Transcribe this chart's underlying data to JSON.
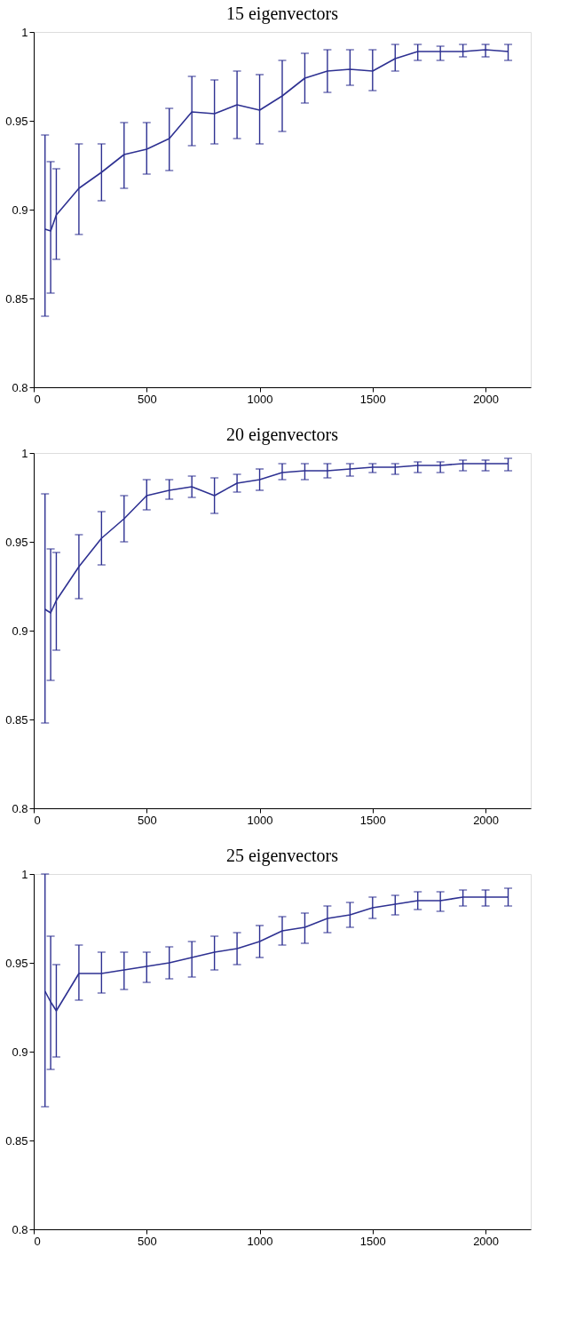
{
  "chart_data": [
    {
      "type": "line",
      "title": "15 eigenvectors",
      "color": "#2e3192",
      "xlim": [
        0,
        2200
      ],
      "xticks": [
        0,
        500,
        1000,
        1500,
        2000
      ],
      "ylim": [
        0.8,
        1
      ],
      "yticks": [
        0.8,
        0.85,
        0.9,
        0.95,
        1
      ],
      "grid": false,
      "marker": "none",
      "line_style": "solid",
      "x": [
        50,
        75,
        100,
        200,
        300,
        400,
        500,
        600,
        700,
        800,
        900,
        1000,
        1100,
        1200,
        1300,
        1400,
        1500,
        1600,
        1700,
        1800,
        1900,
        2000,
        2100
      ],
      "values": [
        0.889,
        0.888,
        0.897,
        0.912,
        0.921,
        0.931,
        0.934,
        0.94,
        0.955,
        0.954,
        0.959,
        0.956,
        0.964,
        0.974,
        0.978,
        0.979,
        0.978,
        0.985,
        0.989,
        0.989,
        0.989,
        0.99,
        0.989
      ],
      "errors": [
        [
          0.84,
          0.942
        ],
        [
          0.853,
          0.927
        ],
        [
          0.872,
          0.923
        ],
        [
          0.886,
          0.937
        ],
        [
          0.905,
          0.937
        ],
        [
          0.912,
          0.949
        ],
        [
          0.92,
          0.949
        ],
        [
          0.922,
          0.957
        ],
        [
          0.936,
          0.975
        ],
        [
          0.937,
          0.973
        ],
        [
          0.94,
          0.978
        ],
        [
          0.937,
          0.976
        ],
        [
          0.944,
          0.984
        ],
        [
          0.96,
          0.988
        ],
        [
          0.966,
          0.99
        ],
        [
          0.97,
          0.99
        ],
        [
          0.967,
          0.99
        ],
        [
          0.978,
          0.993
        ],
        [
          0.984,
          0.993
        ],
        [
          0.984,
          0.992
        ],
        [
          0.986,
          0.993
        ],
        [
          0.986,
          0.993
        ],
        [
          0.984,
          0.993
        ]
      ]
    },
    {
      "type": "line",
      "title": "20 eigenvectors",
      "color": "#2e3192",
      "xlim": [
        0,
        2200
      ],
      "xticks": [
        0,
        500,
        1000,
        1500,
        2000
      ],
      "ylim": [
        0.8,
        1
      ],
      "yticks": [
        0.8,
        0.85,
        0.9,
        0.95,
        1
      ],
      "grid": false,
      "marker": "none",
      "line_style": "solid",
      "x": [
        50,
        75,
        100,
        200,
        300,
        400,
        500,
        600,
        700,
        800,
        900,
        1000,
        1100,
        1200,
        1300,
        1400,
        1500,
        1600,
        1700,
        1800,
        1900,
        2000,
        2100
      ],
      "values": [
        0.912,
        0.91,
        0.917,
        0.936,
        0.952,
        0.963,
        0.976,
        0.979,
        0.981,
        0.976,
        0.983,
        0.985,
        0.989,
        0.99,
        0.99,
        0.991,
        0.992,
        0.992,
        0.993,
        0.993,
        0.994,
        0.994,
        0.994
      ],
      "errors": [
        [
          0.848,
          0.977
        ],
        [
          0.872,
          0.946
        ],
        [
          0.889,
          0.944
        ],
        [
          0.918,
          0.954
        ],
        [
          0.937,
          0.967
        ],
        [
          0.95,
          0.976
        ],
        [
          0.968,
          0.985
        ],
        [
          0.974,
          0.985
        ],
        [
          0.975,
          0.987
        ],
        [
          0.966,
          0.986
        ],
        [
          0.978,
          0.988
        ],
        [
          0.979,
          0.991
        ],
        [
          0.985,
          0.994
        ],
        [
          0.985,
          0.994
        ],
        [
          0.986,
          0.994
        ],
        [
          0.987,
          0.994
        ],
        [
          0.989,
          0.994
        ],
        [
          0.988,
          0.994
        ],
        [
          0.989,
          0.995
        ],
        [
          0.989,
          0.995
        ],
        [
          0.99,
          0.996
        ],
        [
          0.99,
          0.996
        ],
        [
          0.99,
          0.997
        ]
      ]
    },
    {
      "type": "line",
      "title": "25 eigenvectors",
      "color": "#2e3192",
      "xlim": [
        0,
        2200
      ],
      "xticks": [
        0,
        500,
        1000,
        1500,
        2000
      ],
      "ylim": [
        0.8,
        1
      ],
      "yticks": [
        0.8,
        0.85,
        0.9,
        0.95,
        1
      ],
      "grid": false,
      "marker": "none",
      "line_style": "solid",
      "x": [
        50,
        75,
        100,
        200,
        300,
        400,
        500,
        600,
        700,
        800,
        900,
        1000,
        1100,
        1200,
        1300,
        1400,
        1500,
        1600,
        1700,
        1800,
        1900,
        2000,
        2100
      ],
      "values": [
        0.934,
        0.928,
        0.923,
        0.944,
        0.944,
        0.946,
        0.948,
        0.95,
        0.953,
        0.956,
        0.958,
        0.962,
        0.968,
        0.97,
        0.975,
        0.977,
        0.981,
        0.983,
        0.985,
        0.985,
        0.987,
        0.987,
        0.987
      ],
      "errors": [
        [
          0.869,
          1.0
        ],
        [
          0.89,
          0.965
        ],
        [
          0.897,
          0.949
        ],
        [
          0.929,
          0.96
        ],
        [
          0.933,
          0.956
        ],
        [
          0.935,
          0.956
        ],
        [
          0.939,
          0.956
        ],
        [
          0.941,
          0.959
        ],
        [
          0.942,
          0.962
        ],
        [
          0.946,
          0.965
        ],
        [
          0.949,
          0.967
        ],
        [
          0.953,
          0.971
        ],
        [
          0.96,
          0.976
        ],
        [
          0.961,
          0.978
        ],
        [
          0.967,
          0.982
        ],
        [
          0.97,
          0.984
        ],
        [
          0.975,
          0.987
        ],
        [
          0.977,
          0.988
        ],
        [
          0.98,
          0.99
        ],
        [
          0.979,
          0.99
        ],
        [
          0.982,
          0.991
        ],
        [
          0.982,
          0.991
        ],
        [
          0.982,
          0.992
        ]
      ]
    }
  ]
}
